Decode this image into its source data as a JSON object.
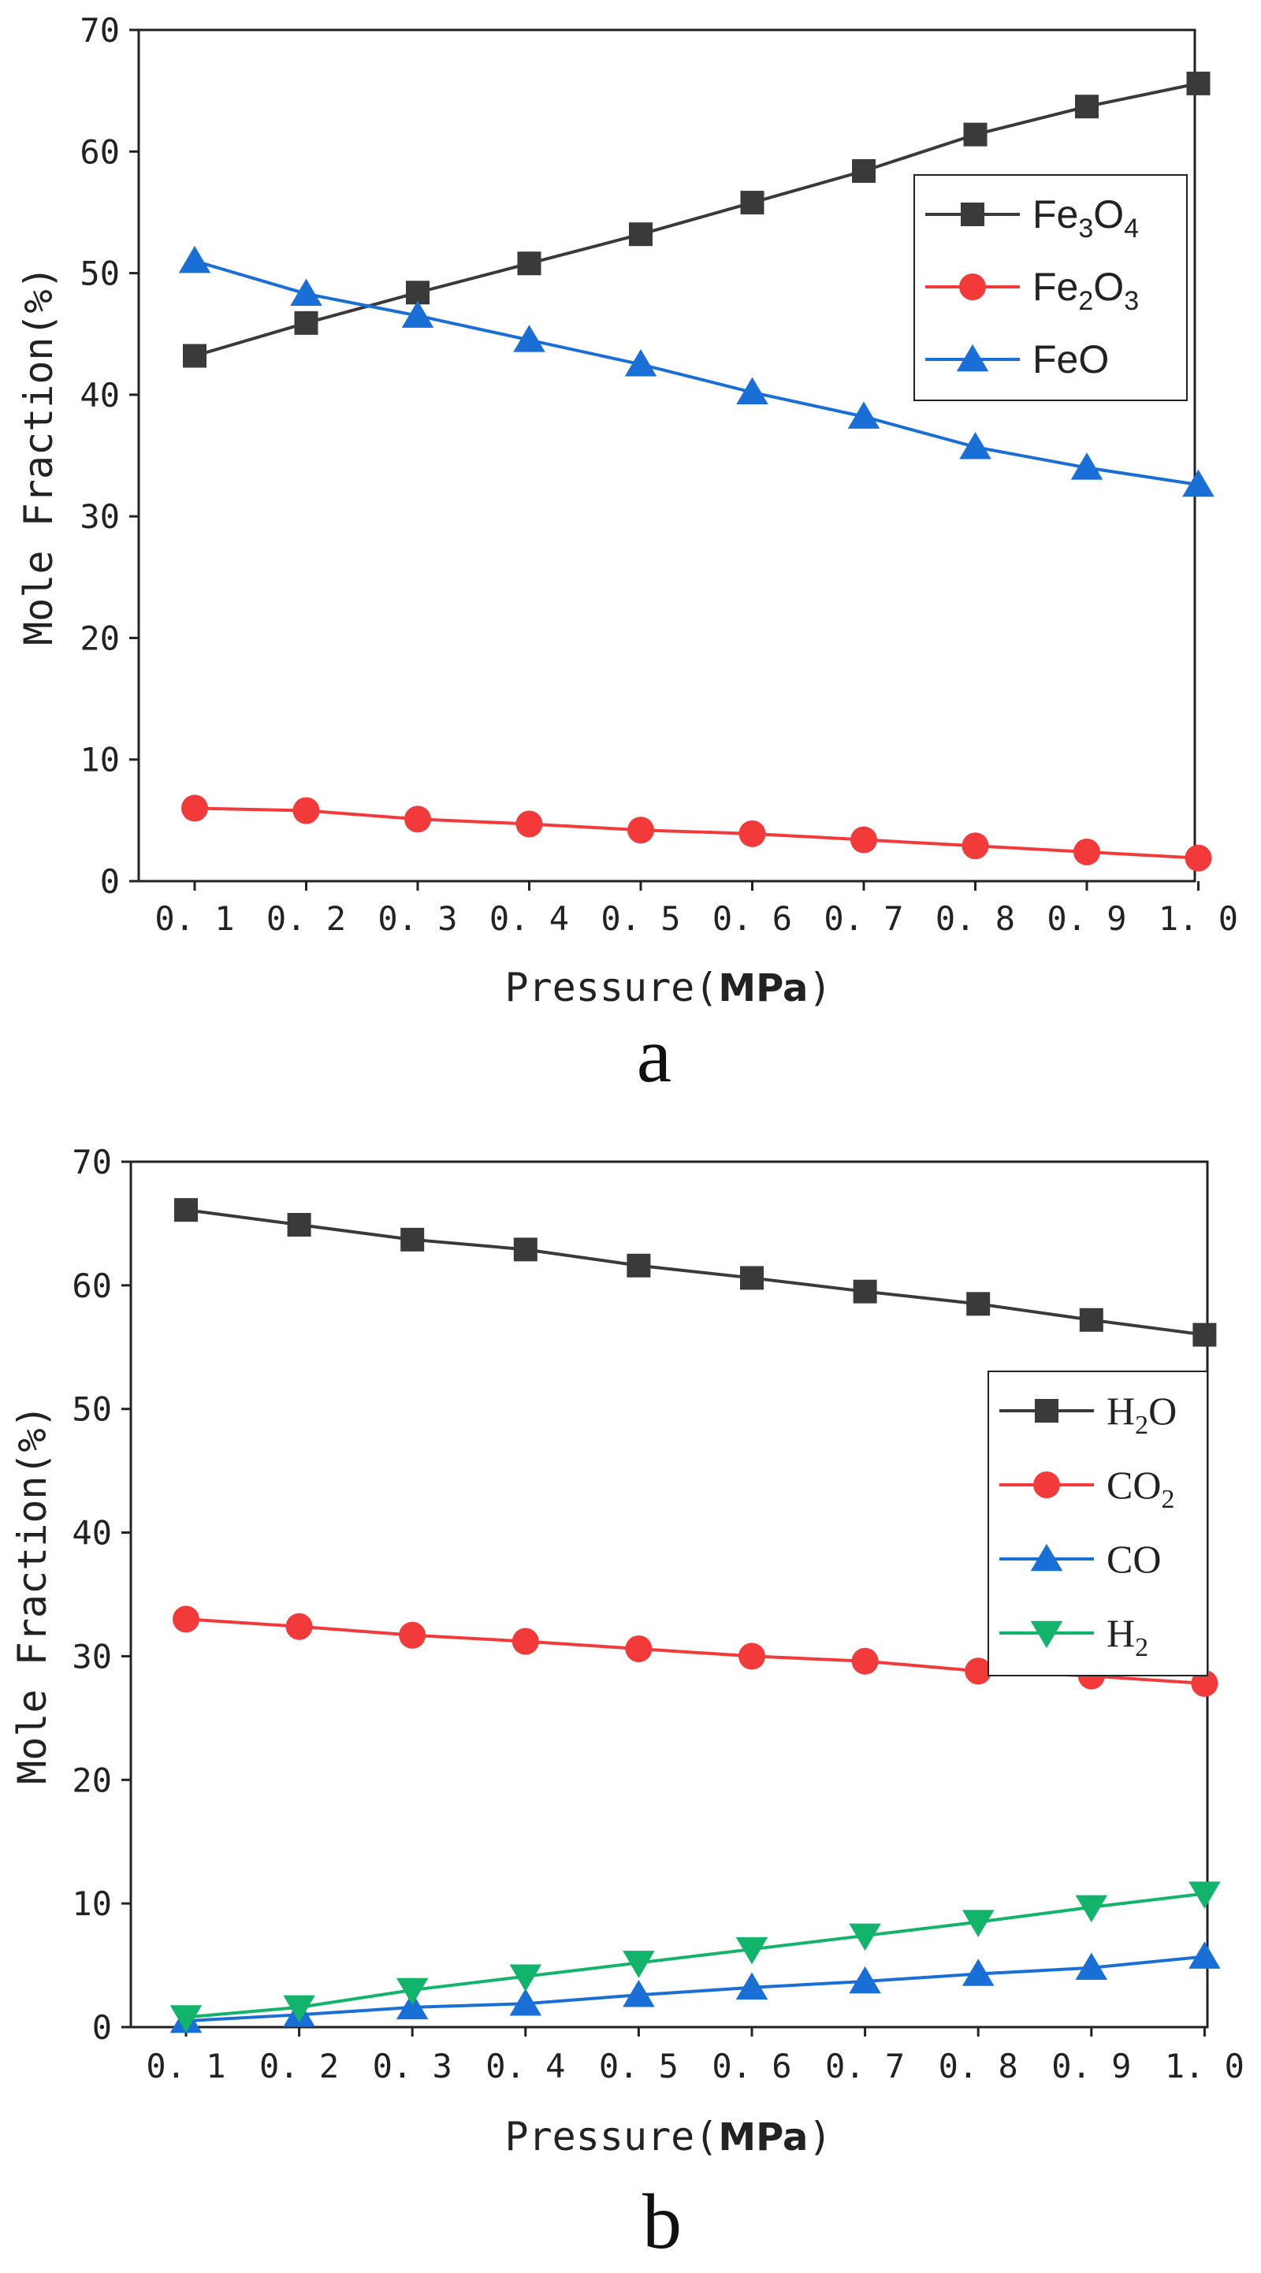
{
  "chart_data": [
    {
      "type": "line",
      "panel_label": "a",
      "xlabel_prefix": "Pressure(",
      "xlabel_unit": "MPa",
      "xlabel_suffix": ")",
      "ylabel": "Mole Fraction(%)",
      "categories": [
        "0.1",
        "0.2",
        "0.3",
        "0.4",
        "0.5",
        "0.6",
        "0.7",
        "0.8",
        "0.9",
        "1.0"
      ],
      "tick_labels_x": [
        "0. 1",
        "0. 2",
        "0. 3",
        "0. 4",
        "0. 5",
        "0. 6",
        "0. 7",
        "0. 8",
        "0. 9",
        "1. 0"
      ],
      "yticks": [
        "0",
        "10",
        "20",
        "30",
        "40",
        "50",
        "60",
        "70"
      ],
      "ylim": [
        0,
        70
      ],
      "legend_position": "top-right",
      "series": [
        {
          "name": "Fe3O4",
          "label_parts": [
            [
              "Fe",
              ""
            ],
            [
              "3",
              "sub"
            ],
            [
              "O",
              ""
            ],
            [
              "4",
              "sub"
            ]
          ],
          "marker": "square",
          "color": "#3a3a3a",
          "values": [
            43.2,
            45.9,
            48.4,
            50.8,
            53.2,
            55.8,
            58.4,
            61.4,
            63.7,
            65.6
          ]
        },
        {
          "name": "Fe2O3",
          "label_parts": [
            [
              "Fe",
              ""
            ],
            [
              "2",
              "sub"
            ],
            [
              "O",
              ""
            ],
            [
              "3",
              "sub"
            ]
          ],
          "marker": "circle",
          "color": "#f23a3a",
          "values": [
            6.0,
            5.8,
            5.1,
            4.7,
            4.2,
            3.9,
            3.4,
            2.9,
            2.4,
            1.9
          ]
        },
        {
          "name": "FeO",
          "label_parts": [
            [
              "FeO",
              ""
            ]
          ],
          "marker": "triangle-up",
          "color": "#1a6fd6",
          "values": [
            51.0,
            48.3,
            46.5,
            44.5,
            42.5,
            40.2,
            38.2,
            35.7,
            34.0,
            32.6
          ]
        }
      ]
    },
    {
      "type": "line",
      "panel_label": "b",
      "xlabel_prefix": "Pressure(",
      "xlabel_unit": "MPa",
      "xlabel_suffix": ")",
      "ylabel": "Mole Fraction(%)",
      "categories": [
        "0.1",
        "0.2",
        "0.3",
        "0.4",
        "0.5",
        "0.6",
        "0.7",
        "0.8",
        "0.9",
        "1.0"
      ],
      "tick_labels_x": [
        "0. 1",
        "0. 2",
        "0. 3",
        "0. 4",
        "0. 5",
        "0. 6",
        "0. 7",
        "0. 8",
        "0. 9",
        "1. 0"
      ],
      "yticks": [
        "0",
        "10",
        "20",
        "30",
        "40",
        "50",
        "60",
        "70"
      ],
      "ylim": [
        0,
        70
      ],
      "legend_position": "right",
      "series": [
        {
          "name": "H2O",
          "label_parts": [
            [
              "H",
              ""
            ],
            [
              "2",
              "sub"
            ],
            [
              "O",
              ""
            ]
          ],
          "marker": "square",
          "color": "#3a3a3a",
          "values": [
            66.1,
            64.9,
            63.7,
            62.9,
            61.6,
            60.6,
            59.5,
            58.5,
            57.2,
            56.0
          ]
        },
        {
          "name": "CO2",
          "label_parts": [
            [
              "CO",
              ""
            ],
            [
              "2",
              "sub"
            ]
          ],
          "marker": "circle",
          "color": "#f23a3a",
          "values": [
            33.0,
            32.4,
            31.7,
            31.2,
            30.6,
            30.0,
            29.6,
            28.8,
            28.4,
            27.8
          ]
        },
        {
          "name": "CO",
          "label_parts": [
            [
              "CO",
              ""
            ]
          ],
          "marker": "triangle-up",
          "color": "#1a6fd6",
          "values": [
            0.5,
            1.0,
            1.6,
            1.9,
            2.6,
            3.2,
            3.7,
            4.3,
            4.8,
            5.7
          ]
        },
        {
          "name": "H2",
          "label_parts": [
            [
              "H",
              ""
            ],
            [
              "2",
              "sub"
            ]
          ],
          "marker": "triangle-down",
          "color": "#12b36a",
          "values": [
            0.8,
            1.6,
            3.0,
            4.1,
            5.2,
            6.3,
            7.4,
            8.5,
            9.7,
            10.8
          ]
        }
      ]
    }
  ]
}
